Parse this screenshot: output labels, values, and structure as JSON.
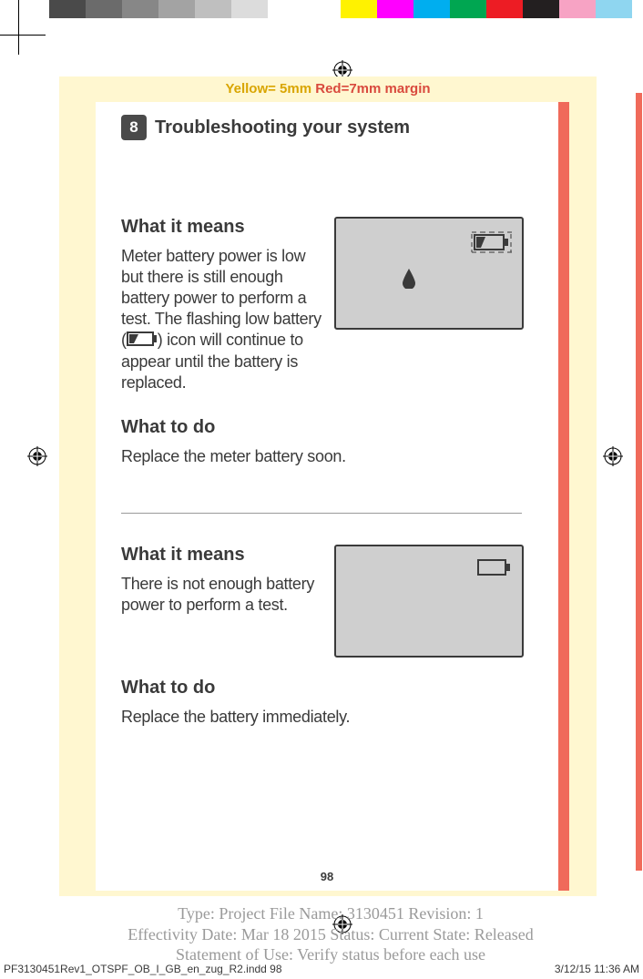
{
  "color_bars": [
    "#ffffff",
    "#4a4a4a",
    "#6b6b6b",
    "#878787",
    "#a3a3a3",
    "#bfbfbf",
    "#dcdcdc",
    "#ffffff",
    "#ffffff",
    "#fff200",
    "#ff00ff",
    "#00aeef",
    "#00a651",
    "#ed1c24",
    "#231f20",
    "#f7a3c4",
    "#8fd6f0"
  ],
  "margin_label_yellow": "Yellow= 5mm",
  "margin_label_red": "  Red=7mm margin",
  "chapter": {
    "num": "8",
    "title": "Troubleshooting your system"
  },
  "sec1": {
    "means_h": "What it means",
    "means_p_pre": "Meter battery power is low but there is still enough battery power to perform a test. The flashing low battery (",
    "means_p_post": ") icon will continue to appear until the battery is replaced.",
    "todo_h": "What to do",
    "todo_p": "Replace the meter battery soon."
  },
  "sec2": {
    "means_h": "What it means",
    "means_p": "There is not enough battery power to perform a test.",
    "todo_h": "What to do",
    "todo_p": "Replace the battery immediately."
  },
  "page_number": "98",
  "footer": {
    "line1": "Type: Project File  Name: 3130451  Revision: 1",
    "line2": "Effectivity Date: Mar 18 2015     Status: Current     State: Released",
    "line3": "Statement of Use: Verify status before each use"
  },
  "bottom": {
    "file": "PF3130451Rev1_OTSPF_OB_I_GB_en_zug_R2.indd   98",
    "stamp": "3/12/15   11:36 AM"
  }
}
